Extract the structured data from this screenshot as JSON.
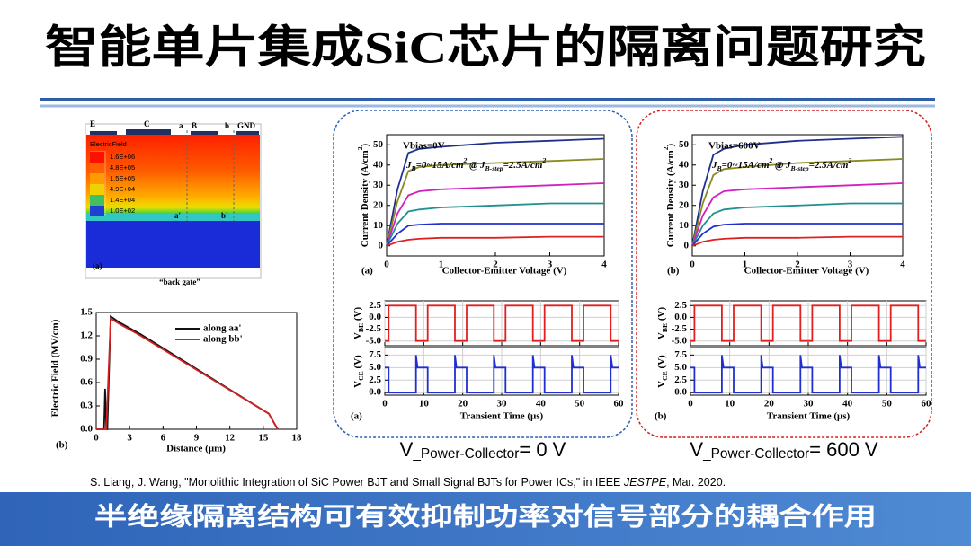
{
  "title": "智能单片集成SiC芯片的隔离问题研究",
  "simulation": {
    "labels": {
      "e": "E",
      "c": "C",
      "a": "a",
      "b_base": "B",
      "b": "b",
      "gnd": "GND",
      "a_prime": "a'",
      "b_prime": "b'",
      "panel_label": "(a)",
      "caption": "“back gate”"
    },
    "legend_title": "ElectricField",
    "legend": [
      "1.6E+06",
      "4.8E+05",
      "1.5E+05",
      "4.9E+04",
      "1.4E+04",
      "1.0E+02"
    ]
  },
  "field_chart": {
    "type": "line",
    "ylabel": "Electric Field (MV/cm)",
    "xlabel": "Distance (μm)",
    "panel_label": "(b)",
    "xlim": [
      0,
      18
    ],
    "ylim": [
      0,
      1.5
    ],
    "xticks": [
      0,
      3,
      6,
      9,
      12,
      15,
      18
    ],
    "yticks": [
      {
        "value": 0,
        "label": "0.0"
      },
      0.3,
      0.6,
      0.9,
      1.2,
      1.5
    ],
    "series": [
      {
        "name": "along aa'",
        "color": "#111111",
        "x": [
          0,
          0.7,
          0.8,
          0.9,
          1.0,
          1.3,
          2,
          4,
          15.5,
          16.3
        ],
        "values": [
          0,
          0,
          0.52,
          0,
          0,
          1.45,
          1.38,
          1.22,
          0.2,
          0
        ]
      },
      {
        "name": "along bb'",
        "color": "#d42020",
        "x": [
          0,
          0.9,
          1.3,
          2,
          4,
          15.5,
          16.3
        ],
        "values": [
          0,
          0,
          1.42,
          1.36,
          1.2,
          0.2,
          0
        ]
      }
    ]
  },
  "panels": [
    {
      "border_color": "#2f5fb3",
      "iv": {
        "type": "line",
        "vbias": "Vbias=0V",
        "note": [
          {
            "text": "J"
          },
          {
            "text": "B",
            "style": "sub"
          },
          {
            "text": "=0~15A/cm"
          },
          {
            "text": "2",
            "style": "sup"
          },
          {
            "text": " @ J"
          },
          {
            "text": "B-step",
            "style": "sub"
          },
          {
            "text": "=2.5A/cm"
          },
          {
            "text": "2",
            "style": "sup"
          }
        ],
        "ylabel": [
          {
            "text": "Current Density (A/cm"
          },
          {
            "text": "2",
            "style": "sup"
          },
          {
            "text": ")"
          }
        ],
        "xlabel": "Collector-Emitter Voltage (V)",
        "panel_label": "(a)",
        "x": [
          0,
          0.2,
          0.4,
          0.6,
          1,
          2,
          3,
          4
        ],
        "xlim": [
          0,
          4
        ],
        "ylim": [
          -5,
          55
        ],
        "xticks": [
          0,
          1,
          2,
          3,
          4
        ],
        "yticks": [
          0,
          10,
          20,
          30,
          40,
          50
        ],
        "series": [
          {
            "color": "#1f2f8f",
            "values": [
              0,
              28,
              46,
              48,
              49,
              51,
              52,
              53
            ]
          },
          {
            "color": "#8a8a20",
            "values": [
              0,
              22,
              37,
              39,
              40,
              41,
              42,
              43
            ]
          },
          {
            "color": "#d020c0",
            "values": [
              0,
              16,
              25,
              27,
              28,
              29,
              30,
              31
            ]
          },
          {
            "color": "#209090",
            "values": [
              0,
              11,
              17,
              18,
              19,
              20,
              21,
              21
            ]
          },
          {
            "color": "#2030d0",
            "values": [
              0,
              6,
              10,
              10.5,
              11,
              11,
              11,
              11
            ]
          },
          {
            "color": "#e02020",
            "values": [
              0,
              2,
              3,
              3.5,
              4,
              4,
              4.5,
              4.5
            ]
          }
        ]
      },
      "transient": {
        "xlabel": "Transient Time (μs)",
        "panel_label": "(a)",
        "xlim": [
          0,
          60
        ],
        "xticks": [
          0,
          10,
          20,
          30,
          40,
          50,
          60
        ],
        "grid": true,
        "charts": [
          {
            "ylabel": [
              {
                "text": "V"
              },
              {
                "text": "BE",
                "style": "sub"
              },
              {
                "text": " (V)"
              }
            ],
            "ylim": [
              -6,
              3.5
            ],
            "yticks": [
              2.5,
              {
                "value": 0,
                "label": "0.0"
              },
              -2.5,
              {
                "value": -5,
                "label": "-5.0"
              }
            ],
            "series": [
              {
                "color": "#e02020",
                "x": [
                  0,
                  1,
                  1,
                  8,
                  8,
                  11,
                  11,
                  18,
                  18,
                  21,
                  21,
                  28,
                  28,
                  31,
                  31,
                  38,
                  38,
                  41,
                  41,
                  48,
                  48,
                  51,
                  51,
                  58,
                  58,
                  60
                ],
                "values": [
                  -5,
                  -5,
                  2.5,
                  2.5,
                  -5,
                  -5,
                  2.5,
                  2.5,
                  -5,
                  -5,
                  2.5,
                  2.5,
                  -5,
                  -5,
                  2.5,
                  2.5,
                  -5,
                  -5,
                  2.5,
                  2.5,
                  -5,
                  -5,
                  2.5,
                  2.5,
                  -5,
                  -5
                ]
              }
            ]
          },
          {
            "ylabel": [
              {
                "text": "V"
              },
              {
                "text": "CE",
                "style": "sub"
              },
              {
                "text": " (V)"
              }
            ],
            "ylim": [
              -0.5,
              9
            ],
            "yticks": [
              {
                "value": 0,
                "label": "0.0"
              },
              2.5,
              {
                "value": 5,
                "label": "5.0"
              },
              7.5
            ],
            "series": [
              {
                "color": "#2030d0",
                "x": [
                  0,
                  1,
                  1,
                  8,
                  8,
                  8.4,
                  11,
                  11,
                  18,
                  18,
                  18.4,
                  21,
                  21,
                  28,
                  28,
                  28.4,
                  31,
                  31,
                  38,
                  38,
                  38.4,
                  41,
                  41,
                  48,
                  48,
                  48.4,
                  51,
                  51,
                  58,
                  58,
                  58.4,
                  60
                ],
                "values": [
                  5,
                  5,
                  0,
                  0,
                  7.5,
                  5,
                  5,
                  0,
                  0,
                  7.5,
                  5,
                  5,
                  0,
                  0,
                  7.5,
                  5,
                  5,
                  0,
                  0,
                  7.5,
                  5,
                  5,
                  0,
                  0,
                  7.5,
                  5,
                  5,
                  0,
                  0,
                  7.5,
                  5,
                  5
                ]
              }
            ]
          }
        ]
      },
      "caption": [
        {
          "text": "V"
        },
        {
          "text": "_Power-Collector",
          "style": "sub"
        },
        {
          "text": "= 0 V"
        }
      ]
    },
    {
      "border_color": "#d42020",
      "iv": {
        "type": "line",
        "vbias": "Vbias=600V",
        "note": [
          {
            "text": "J"
          },
          {
            "text": "B",
            "style": "sub"
          },
          {
            "text": "=0~15A/cm"
          },
          {
            "text": "2",
            "style": "sup"
          },
          {
            "text": " @ J"
          },
          {
            "text": "B-step",
            "style": "sub"
          },
          {
            "text": "=2.5A/cm"
          },
          {
            "text": "2",
            "style": "sup"
          }
        ],
        "ylabel": [
          {
            "text": "Current Density (A/cm"
          },
          {
            "text": "2",
            "style": "sup"
          },
          {
            "text": ")"
          }
        ],
        "xlabel": "Collector-Emitter Voltage (V)",
        "panel_label": "(b)",
        "x": [
          0,
          0.2,
          0.4,
          0.6,
          1,
          2,
          3,
          4
        ],
        "xlim": [
          0,
          4
        ],
        "ylim": [
          -5,
          55
        ],
        "xticks": [
          0,
          1,
          2,
          3,
          4
        ],
        "yticks": [
          0,
          10,
          20,
          30,
          40,
          50
        ],
        "series": [
          {
            "color": "#1f2f8f",
            "values": [
              0,
              27,
              45,
              48,
              50,
              52,
              53,
              54
            ]
          },
          {
            "color": "#8a8a20",
            "values": [
              0,
              21,
              35,
              38,
              39,
              41,
              42,
              43
            ]
          },
          {
            "color": "#d020c0",
            "values": [
              0,
              15,
              24,
              27,
              28,
              29,
              30,
              31
            ]
          },
          {
            "color": "#209090",
            "values": [
              0,
              10,
              16,
              18,
              19,
              20,
              21,
              21
            ]
          },
          {
            "color": "#2030d0",
            "values": [
              0,
              6,
              9.5,
              10.5,
              11,
              11,
              11,
              11
            ]
          },
          {
            "color": "#e02020",
            "values": [
              0,
              2,
              3,
              3.5,
              4,
              4,
              4.5,
              4.5
            ]
          }
        ]
      },
      "transient": {
        "xlabel": "Transient Time (μs)",
        "panel_label": "(b)",
        "xlim": [
          0,
          60
        ],
        "xticks": [
          0,
          10,
          20,
          30,
          40,
          50,
          60
        ],
        "grid": true,
        "charts": [
          {
            "ylabel": [
              {
                "text": "V"
              },
              {
                "text": "BE",
                "style": "sub"
              },
              {
                "text": " (V)"
              }
            ],
            "ylim": [
              -6,
              3.5
            ],
            "yticks": [
              2.5,
              {
                "value": 0,
                "label": "0.0"
              },
              -2.5,
              {
                "value": -5,
                "label": "-5.0"
              }
            ],
            "series": [
              {
                "color": "#e02020",
                "x": [
                  0,
                  1,
                  1,
                  8,
                  8,
                  11,
                  11,
                  18,
                  18,
                  21,
                  21,
                  28,
                  28,
                  31,
                  31,
                  38,
                  38,
                  41,
                  41,
                  48,
                  48,
                  51,
                  51,
                  58,
                  58,
                  60
                ],
                "values": [
                  -5,
                  -5,
                  2.5,
                  2.5,
                  -5,
                  -5,
                  2.5,
                  2.5,
                  -5,
                  -5,
                  2.5,
                  2.5,
                  -5,
                  -5,
                  2.5,
                  2.5,
                  -5,
                  -5,
                  2.5,
                  2.5,
                  -5,
                  -5,
                  2.5,
                  2.5,
                  -5,
                  -5
                ]
              }
            ]
          },
          {
            "ylabel": [
              {
                "text": "V"
              },
              {
                "text": "CE",
                "style": "sub"
              },
              {
                "text": " (V)"
              }
            ],
            "ylim": [
              -0.5,
              9
            ],
            "yticks": [
              {
                "value": 0,
                "label": "0.0"
              },
              2.5,
              {
                "value": 5,
                "label": "5.0"
              },
              7.5
            ],
            "series": [
              {
                "color": "#2030d0",
                "x": [
                  0,
                  1,
                  1,
                  8,
                  8,
                  8.4,
                  11,
                  11,
                  18,
                  18,
                  18.4,
                  21,
                  21,
                  28,
                  28,
                  28.4,
                  31,
                  31,
                  38,
                  38,
                  38.4,
                  41,
                  41,
                  48,
                  48,
                  48.4,
                  51,
                  51,
                  58,
                  58,
                  58.4,
                  60
                ],
                "values": [
                  5,
                  5,
                  0,
                  0,
                  7.5,
                  5,
                  5,
                  0,
                  0,
                  7.5,
                  5,
                  5,
                  0,
                  0,
                  7.5,
                  5,
                  5,
                  0,
                  0,
                  7.5,
                  5,
                  5,
                  0,
                  0,
                  7.5,
                  5,
                  5,
                  0,
                  0,
                  7.5,
                  5,
                  5
                ]
              }
            ]
          }
        ]
      },
      "caption": [
        {
          "text": "V"
        },
        {
          "text": "_Power-Collector",
          "style": "sub"
        },
        {
          "text": "= 600 V"
        }
      ]
    }
  ],
  "citation": [
    {
      "text": "S. Liang, J. Wang, \"Monolithic Integration of SiC Power BJT and Small Signal BJTs for Power ICs,\" in IEEE "
    },
    {
      "text": "JESTPE",
      "style": "italic"
    },
    {
      "text": ", Mar. 2020."
    }
  ],
  "footer": "半绝缘隔离结构可有效抑制功率对信号部分的耦合作用"
}
